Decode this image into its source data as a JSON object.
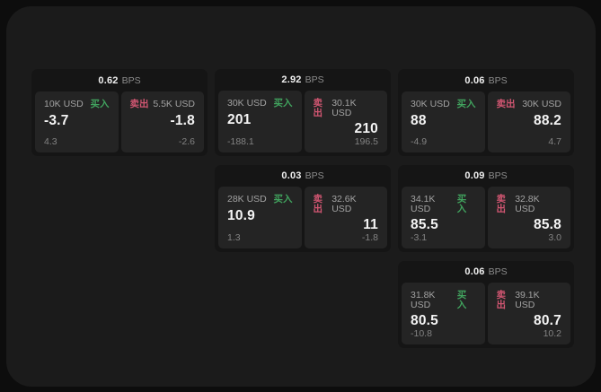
{
  "labels": {
    "buy": "买入",
    "sell": "卖出",
    "bps": "BPS"
  },
  "colors": {
    "buy": "#41a35e",
    "sell": "#d25672",
    "surface": "#1b1b1b",
    "card": "#151515",
    "panel": "#242424"
  },
  "cards": [
    {
      "bps": "0.62",
      "buy": {
        "amount": "10K USD",
        "value": "-3.7",
        "delta": "4.3"
      },
      "sell": {
        "amount": "5.5K USD",
        "value": "-1.8",
        "delta": "-2.6"
      }
    },
    {
      "bps": "2.92",
      "buy": {
        "amount": "30K USD",
        "value": "201",
        "delta": "-188.1"
      },
      "sell": {
        "amount": "30.1K USD",
        "value": "210",
        "delta": "196.5"
      }
    },
    {
      "bps": "0.06",
      "buy": {
        "amount": "30K USD",
        "value": "88",
        "delta": "-4.9"
      },
      "sell": {
        "amount": "30K USD",
        "value": "88.2",
        "delta": "4.7"
      }
    },
    {
      "bps": "0.03",
      "buy": {
        "amount": "28K USD",
        "value": "10.9",
        "delta": "1.3"
      },
      "sell": {
        "amount": "32.6K USD",
        "value": "11",
        "delta": "-1.8"
      }
    },
    {
      "bps": "0.09",
      "buy": {
        "amount": "34.1K USD",
        "value": "85.5",
        "delta": "-3.1"
      },
      "sell": {
        "amount": "32.8K USD",
        "value": "85.8",
        "delta": "3.0"
      }
    },
    {
      "bps": "0.06",
      "buy": {
        "amount": "31.8K USD",
        "value": "80.5",
        "delta": "-10.8"
      },
      "sell": {
        "amount": "39.1K USD",
        "value": "80.7",
        "delta": "10.2"
      }
    }
  ]
}
